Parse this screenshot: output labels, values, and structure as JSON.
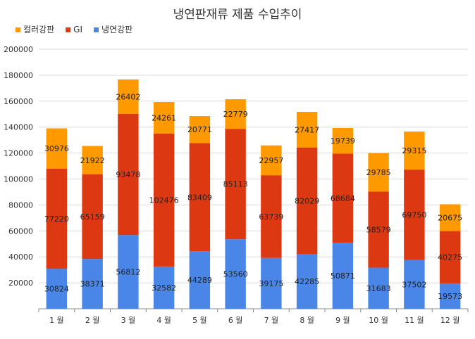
{
  "chart_data": {
    "type": "bar",
    "stacked": true,
    "title": "냉연판재류 제품 수입추이",
    "categories": [
      "1 월",
      "2 월",
      "3 월",
      "4 월",
      "5 월",
      "6 월",
      "7 월",
      "8 월",
      "9 월",
      "10 월",
      "11 월",
      "12 월"
    ],
    "series": [
      {
        "name": "냉연강판",
        "color": "#4a86e8",
        "values": [
          30824,
          38371,
          56812,
          32582,
          44289,
          53560,
          39175,
          42285,
          50871,
          31683,
          37502,
          19573
        ]
      },
      {
        "name": "GI",
        "color": "#dc3912",
        "values": [
          77220,
          65159,
          93478,
          102476,
          83409,
          85113,
          63739,
          82029,
          68684,
          58579,
          69750,
          40275
        ]
      },
      {
        "name": "컬러강판",
        "color": "#ff9900",
        "values": [
          30976,
          21922,
          26402,
          24261,
          20771,
          22779,
          22957,
          27417,
          19739,
          29785,
          29315,
          20675
        ]
      }
    ],
    "legend_order": [
      "컬러강판",
      "GI",
      "냉연강판"
    ],
    "legend_position": "top-left",
    "ylim": [
      0,
      200000
    ],
    "yticks": [
      0,
      20000,
      40000,
      60000,
      80000,
      100000,
      120000,
      140000,
      160000,
      180000,
      200000
    ],
    "ytick_labels": [
      "",
      "20000",
      "40000",
      "60000",
      "80000",
      "100000",
      "120000",
      "140000",
      "160000",
      "180000",
      "200000"
    ],
    "grid": true,
    "xlabel": "",
    "ylabel": ""
  }
}
